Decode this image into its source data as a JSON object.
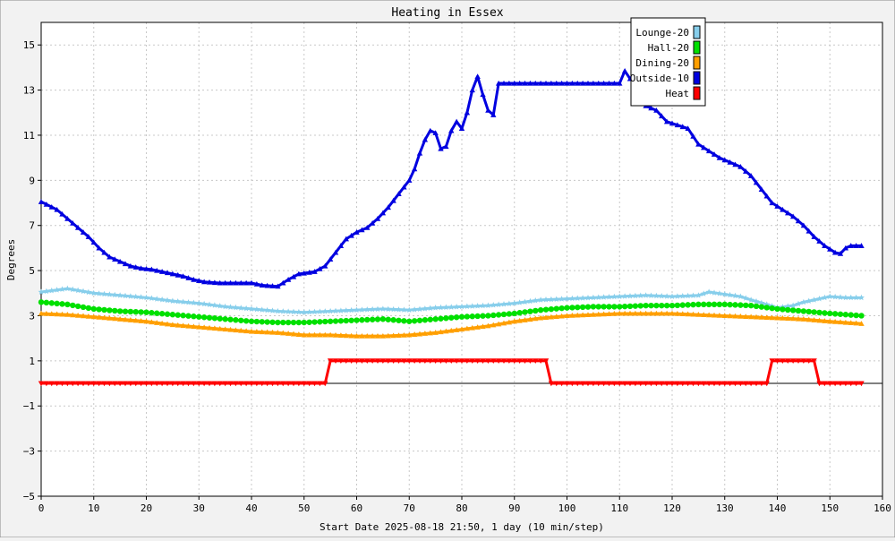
{
  "chart_data": {
    "type": "line",
    "title": "Heating in Essex",
    "xlabel": "Start Date 2025-08-18 21:50, 1 day (10 min/step)",
    "ylabel": "Degrees",
    "xlim": [
      0,
      160
    ],
    "ylim": [
      -5,
      16
    ],
    "x_ticks": [
      0,
      10,
      20,
      30,
      40,
      50,
      60,
      70,
      80,
      90,
      100,
      110,
      120,
      130,
      140,
      150,
      160
    ],
    "y_ticks": [
      -5,
      -3,
      -1,
      1,
      3,
      5,
      7,
      9,
      11,
      13,
      15
    ],
    "grid": true,
    "legend_position": "top-right",
    "series": [
      {
        "name": "Lounge-20",
        "color": "#87ceeb",
        "marker": "star",
        "points": [
          [
            0,
            4.05
          ],
          [
            5,
            4.2
          ],
          [
            10,
            4.0
          ],
          [
            15,
            3.9
          ],
          [
            20,
            3.8
          ],
          [
            25,
            3.65
          ],
          [
            30,
            3.55
          ],
          [
            35,
            3.4
          ],
          [
            40,
            3.3
          ],
          [
            45,
            3.2
          ],
          [
            50,
            3.15
          ],
          [
            55,
            3.2
          ],
          [
            60,
            3.25
          ],
          [
            65,
            3.3
          ],
          [
            70,
            3.25
          ],
          [
            75,
            3.35
          ],
          [
            80,
            3.4
          ],
          [
            85,
            3.45
          ],
          [
            90,
            3.55
          ],
          [
            95,
            3.7
          ],
          [
            100,
            3.75
          ],
          [
            105,
            3.8
          ],
          [
            110,
            3.85
          ],
          [
            115,
            3.9
          ],
          [
            120,
            3.85
          ],
          [
            125,
            3.9
          ],
          [
            127,
            4.05
          ],
          [
            130,
            3.95
          ],
          [
            133,
            3.85
          ],
          [
            135,
            3.7
          ],
          [
            138,
            3.5
          ],
          [
            140,
            3.35
          ],
          [
            143,
            3.45
          ],
          [
            145,
            3.6
          ],
          [
            150,
            3.85
          ],
          [
            153,
            3.8
          ],
          [
            156,
            3.8
          ]
        ]
      },
      {
        "name": "Hall-20",
        "color": "#00e000",
        "marker": "circle",
        "points": [
          [
            0,
            3.6
          ],
          [
            5,
            3.5
          ],
          [
            10,
            3.3
          ],
          [
            15,
            3.2
          ],
          [
            20,
            3.15
          ],
          [
            25,
            3.05
          ],
          [
            30,
            2.95
          ],
          [
            35,
            2.85
          ],
          [
            40,
            2.75
          ],
          [
            45,
            2.7
          ],
          [
            50,
            2.7
          ],
          [
            55,
            2.75
          ],
          [
            60,
            2.8
          ],
          [
            65,
            2.85
          ],
          [
            70,
            2.75
          ],
          [
            75,
            2.85
          ],
          [
            80,
            2.95
          ],
          [
            85,
            3.0
          ],
          [
            90,
            3.1
          ],
          [
            95,
            3.25
          ],
          [
            100,
            3.35
          ],
          [
            105,
            3.4
          ],
          [
            110,
            3.4
          ],
          [
            115,
            3.45
          ],
          [
            120,
            3.45
          ],
          [
            125,
            3.5
          ],
          [
            130,
            3.5
          ],
          [
            135,
            3.45
          ],
          [
            140,
            3.3
          ],
          [
            145,
            3.2
          ],
          [
            150,
            3.1
          ],
          [
            156,
            3.0
          ]
        ]
      },
      {
        "name": "Dining-20",
        "color": "#ff9f00",
        "marker": "triangle-up",
        "points": [
          [
            0,
            3.1
          ],
          [
            5,
            3.05
          ],
          [
            10,
            2.95
          ],
          [
            15,
            2.85
          ],
          [
            20,
            2.75
          ],
          [
            25,
            2.6
          ],
          [
            30,
            2.5
          ],
          [
            35,
            2.4
          ],
          [
            40,
            2.3
          ],
          [
            45,
            2.25
          ],
          [
            50,
            2.15
          ],
          [
            55,
            2.15
          ],
          [
            60,
            2.1
          ],
          [
            65,
            2.1
          ],
          [
            70,
            2.15
          ],
          [
            75,
            2.25
          ],
          [
            80,
            2.4
          ],
          [
            85,
            2.55
          ],
          [
            90,
            2.75
          ],
          [
            95,
            2.9
          ],
          [
            100,
            3.0
          ],
          [
            105,
            3.05
          ],
          [
            110,
            3.1
          ],
          [
            115,
            3.1
          ],
          [
            120,
            3.1
          ],
          [
            125,
            3.05
          ],
          [
            130,
            3.0
          ],
          [
            135,
            2.95
          ],
          [
            140,
            2.9
          ],
          [
            145,
            2.85
          ],
          [
            150,
            2.75
          ],
          [
            156,
            2.65
          ]
        ]
      },
      {
        "name": "Outside-10",
        "color": "#0000e0",
        "marker": "triangle-up",
        "points": [
          [
            0,
            8.05
          ],
          [
            3,
            7.7
          ],
          [
            5,
            7.3
          ],
          [
            7,
            6.9
          ],
          [
            9,
            6.5
          ],
          [
            11,
            6.0
          ],
          [
            13,
            5.6
          ],
          [
            15,
            5.4
          ],
          [
            17,
            5.2
          ],
          [
            19,
            5.1
          ],
          [
            21,
            5.05
          ],
          [
            23,
            4.95
          ],
          [
            25,
            4.85
          ],
          [
            27,
            4.75
          ],
          [
            29,
            4.6
          ],
          [
            31,
            4.5
          ],
          [
            34,
            4.45
          ],
          [
            37,
            4.45
          ],
          [
            40,
            4.45
          ],
          [
            42,
            4.35
          ],
          [
            45,
            4.3
          ],
          [
            47,
            4.6
          ],
          [
            49,
            4.85
          ],
          [
            52,
            4.95
          ],
          [
            54,
            5.2
          ],
          [
            56,
            5.8
          ],
          [
            58,
            6.4
          ],
          [
            60,
            6.7
          ],
          [
            62,
            6.9
          ],
          [
            64,
            7.3
          ],
          [
            66,
            7.8
          ],
          [
            68,
            8.4
          ],
          [
            70,
            9.0
          ],
          [
            71,
            9.5
          ],
          [
            72,
            10.2
          ],
          [
            73,
            10.8
          ],
          [
            74,
            11.2
          ],
          [
            75,
            11.1
          ],
          [
            76,
            10.4
          ],
          [
            77,
            10.5
          ],
          [
            78,
            11.2
          ],
          [
            79,
            11.6
          ],
          [
            80,
            11.3
          ],
          [
            81,
            12.0
          ],
          [
            82,
            13.0
          ],
          [
            83,
            13.6
          ],
          [
            84,
            12.8
          ],
          [
            85,
            12.1
          ],
          [
            86,
            11.9
          ],
          [
            87,
            13.3
          ],
          [
            90,
            13.3
          ],
          [
            100,
            13.3
          ],
          [
            110,
            13.3
          ],
          [
            111,
            13.85
          ],
          [
            112,
            13.5
          ],
          [
            113,
            13.3
          ],
          [
            115,
            12.3
          ],
          [
            117,
            12.1
          ],
          [
            119,
            11.6
          ],
          [
            121,
            11.45
          ],
          [
            123,
            11.3
          ],
          [
            125,
            10.6
          ],
          [
            127,
            10.3
          ],
          [
            129,
            10.0
          ],
          [
            131,
            9.8
          ],
          [
            133,
            9.6
          ],
          [
            135,
            9.2
          ],
          [
            137,
            8.6
          ],
          [
            139,
            8.0
          ],
          [
            141,
            7.7
          ],
          [
            143,
            7.4
          ],
          [
            145,
            7.0
          ],
          [
            147,
            6.5
          ],
          [
            149,
            6.1
          ],
          [
            151,
            5.8
          ],
          [
            152,
            5.75
          ],
          [
            153,
            6.0
          ],
          [
            154,
            6.1
          ],
          [
            156,
            6.1
          ]
        ]
      },
      {
        "name": "Heat",
        "color": "#ff0000",
        "marker": "triangle-down",
        "points": [
          [
            0,
            0
          ],
          [
            54,
            0
          ],
          [
            55,
            1.0
          ],
          [
            96,
            1.0
          ],
          [
            97,
            0
          ],
          [
            138,
            0
          ],
          [
            139,
            1.0
          ],
          [
            147,
            1.0
          ],
          [
            148,
            0
          ],
          [
            156,
            0
          ]
        ]
      }
    ]
  }
}
